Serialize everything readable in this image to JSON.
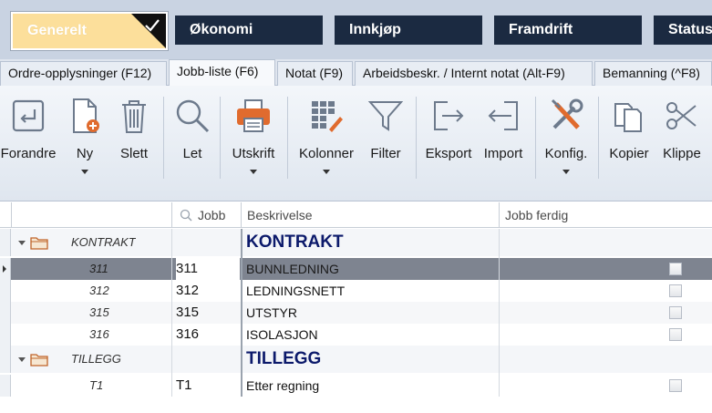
{
  "main_tabs": [
    {
      "label": "Generelt",
      "active": true
    },
    {
      "label": "Økonomi"
    },
    {
      "label": "Innkjøp"
    },
    {
      "label": "Framdrift"
    },
    {
      "label": "Status"
    }
  ],
  "sub_tabs": [
    {
      "label": "Ordre-opplysninger (F12)"
    },
    {
      "label": "Jobb-liste (F6)",
      "active": true
    },
    {
      "label": "Notat (F9)"
    },
    {
      "label": "Arbeidsbeskr. / Internt notat (Alt-F9)"
    },
    {
      "label": "Bemanning (^F8)"
    }
  ],
  "ribbon": [
    {
      "label": "Forandre",
      "icon": "edit-icon"
    },
    {
      "label": "Ny",
      "icon": "new-document-icon",
      "dropdown": true
    },
    {
      "label": "Slett",
      "icon": "trash-icon"
    },
    {
      "label": "Let",
      "icon": "search-icon"
    },
    {
      "label": "Utskrift",
      "icon": "printer-icon",
      "dropdown": true
    },
    {
      "label": "Kolonner",
      "icon": "columns-grid-icon",
      "dropdown": true
    },
    {
      "label": "Filter",
      "icon": "funnel-icon"
    },
    {
      "label": "Eksport",
      "icon": "export-icon"
    },
    {
      "label": "Import",
      "icon": "import-icon"
    },
    {
      "label": "Konfig.",
      "icon": "tools-icon",
      "dropdown": true
    },
    {
      "label": "Kopier",
      "icon": "copy-icon"
    },
    {
      "label": "Klippe",
      "icon": "scissors-icon"
    }
  ],
  "grid": {
    "headers": {
      "jobb": "Jobb",
      "beskrivelse": "Beskrivelse",
      "jobb_ferdig": "Jobb ferdig"
    },
    "rows": [
      {
        "type": "group",
        "code": "KONTRAKT",
        "jobb": "",
        "desc": "KONTRAKT"
      },
      {
        "type": "item",
        "code": "311",
        "jobb": "311",
        "desc": "BUNNLEDNING",
        "selected": true
      },
      {
        "type": "item",
        "code": "312",
        "jobb": "312",
        "desc": "LEDNINGSNETT"
      },
      {
        "type": "item",
        "code": "315",
        "jobb": "315",
        "desc": "UTSTYR"
      },
      {
        "type": "item",
        "code": "316",
        "jobb": "316",
        "desc": "ISOLASJON"
      },
      {
        "type": "group",
        "code": "TILLEGG",
        "jobb": "",
        "desc": "TILLEGG"
      },
      {
        "type": "item",
        "code": "T1",
        "jobb": "T1",
        "desc": "Etter regning"
      }
    ]
  },
  "colors": {
    "topbar": "#c9d3e2",
    "button_dark": "#1b2a41",
    "active_button": "#fcdf9b",
    "group_text": "#0c1a6b",
    "selected_row": "#7e8490"
  }
}
